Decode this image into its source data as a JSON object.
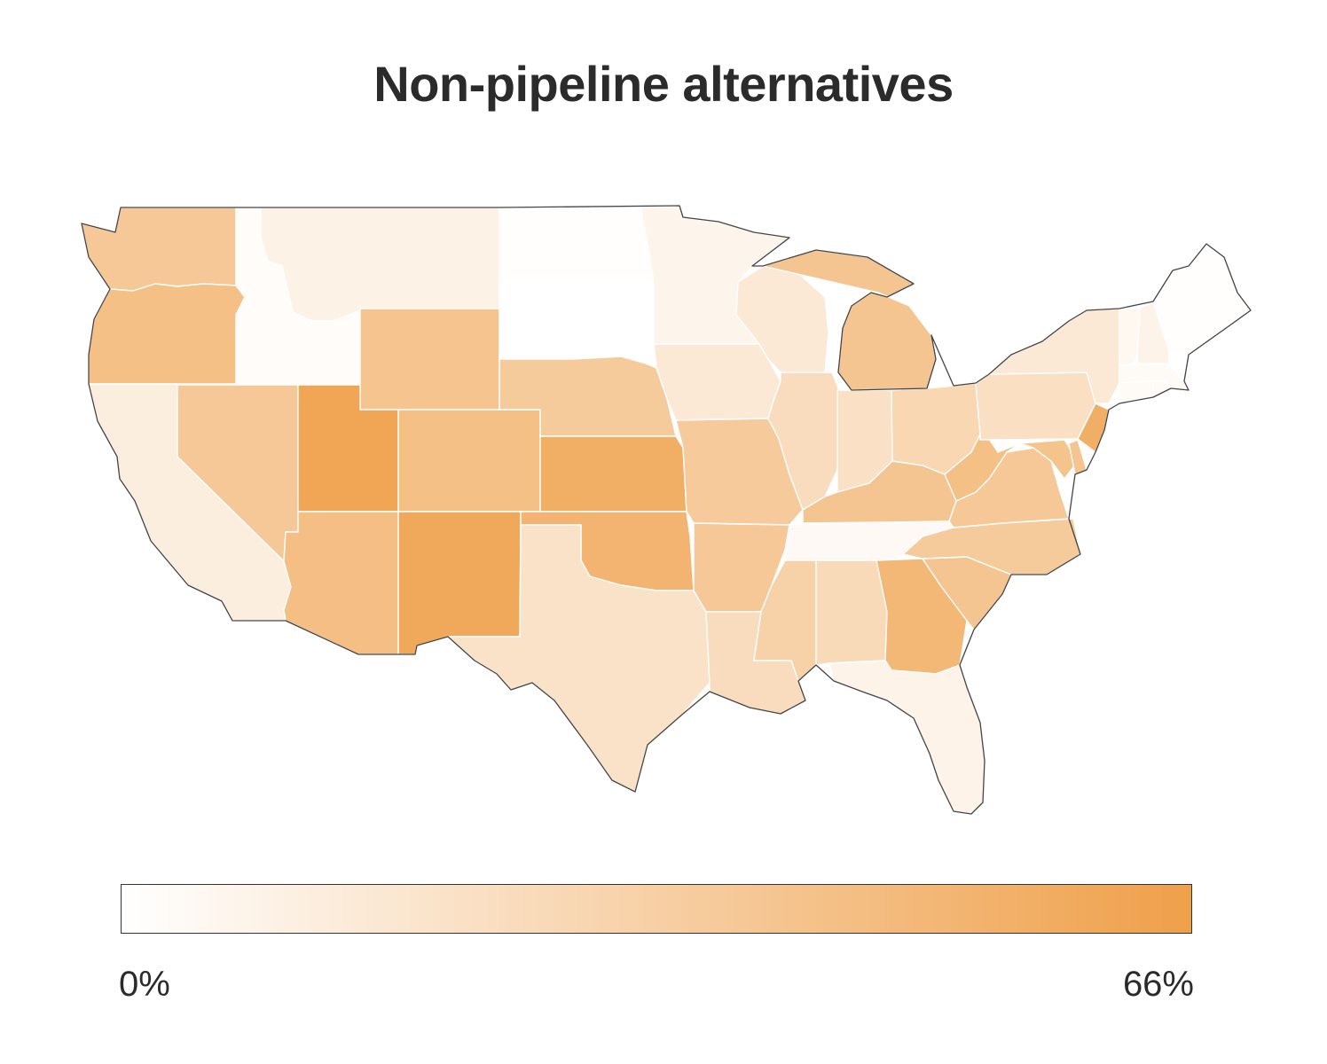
{
  "title": "Non-pipeline alternatives",
  "legend": {
    "min_label": "0%",
    "max_label": "66%",
    "min_value": 0,
    "max_value": 66,
    "color_low": "#ffffff",
    "color_high": "#efa04a"
  },
  "chart_data": {
    "type": "heatmap",
    "title": "Non-pipeline alternatives",
    "unit": "%",
    "scale": [
      0,
      66
    ],
    "states": [
      {
        "id": "WA",
        "value": 38
      },
      {
        "id": "OR",
        "value": 44
      },
      {
        "id": "CA",
        "value": 12
      },
      {
        "id": "ID",
        "value": 2
      },
      {
        "id": "NV",
        "value": 38
      },
      {
        "id": "MT",
        "value": 9
      },
      {
        "id": "WY",
        "value": 41
      },
      {
        "id": "UT",
        "value": 62
      },
      {
        "id": "AZ",
        "value": 45
      },
      {
        "id": "CO",
        "value": 44
      },
      {
        "id": "NM",
        "value": 60
      },
      {
        "id": "ND",
        "value": 1
      },
      {
        "id": "SD",
        "value": 0
      },
      {
        "id": "NE",
        "value": 36
      },
      {
        "id": "KS",
        "value": 56
      },
      {
        "id": "OK",
        "value": 52
      },
      {
        "id": "TX",
        "value": 20
      },
      {
        "id": "MN",
        "value": 7
      },
      {
        "id": "IA",
        "value": 15
      },
      {
        "id": "MO",
        "value": 37
      },
      {
        "id": "AR",
        "value": 38
      },
      {
        "id": "LA",
        "value": 24
      },
      {
        "id": "WI",
        "value": 15
      },
      {
        "id": "IL",
        "value": 24
      },
      {
        "id": "IN",
        "value": 21
      },
      {
        "id": "OH",
        "value": 28
      },
      {
        "id": "MI",
        "value": 40
      },
      {
        "id": "KY",
        "value": 40
      },
      {
        "id": "TN",
        "value": 4
      },
      {
        "id": "MS",
        "value": 32
      },
      {
        "id": "AL",
        "value": 26
      },
      {
        "id": "GA",
        "value": 50
      },
      {
        "id": "FL",
        "value": 8
      },
      {
        "id": "SC",
        "value": 40
      },
      {
        "id": "NC",
        "value": 36
      },
      {
        "id": "VA",
        "value": 38
      },
      {
        "id": "WV",
        "value": 44
      },
      {
        "id": "PA",
        "value": 22
      },
      {
        "id": "NY",
        "value": 15
      },
      {
        "id": "NJ",
        "value": 56
      },
      {
        "id": "MD",
        "value": 42
      },
      {
        "id": "DE",
        "value": 40
      },
      {
        "id": "VT",
        "value": 5
      },
      {
        "id": "NH",
        "value": 8
      },
      {
        "id": "ME",
        "value": 1
      },
      {
        "id": "MA",
        "value": 3
      },
      {
        "id": "CT",
        "value": 3
      },
      {
        "id": "RI",
        "value": 3
      }
    ]
  }
}
